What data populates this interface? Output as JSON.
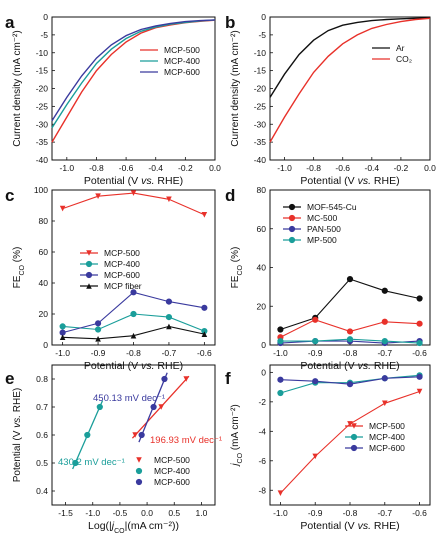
{
  "panels": [
    {
      "id": "a",
      "chart_data": {
        "type": "line",
        "xlabel": "Potential (V vs. RHE)",
        "ylabel": "Current density (mA cm⁻²)",
        "xlim": [
          -1.1,
          0.0
        ],
        "ylim": [
          -40,
          0
        ],
        "xticks": [
          -1.0,
          -0.8,
          -0.6,
          -0.4,
          -0.2,
          0.0
        ],
        "xtick_labels": [
          "-1.0",
          "-0.8",
          "-0.6",
          "-0.4",
          "-0.2",
          "0.0"
        ],
        "yticks": [
          0,
          -5,
          -10,
          -15,
          -20,
          -25,
          -30,
          -35,
          -40
        ],
        "ytick_labels": [
          "0",
          "-5",
          "-10",
          "-15",
          "-20",
          "-25",
          "-30",
          "-35",
          "-40"
        ],
        "legend_position": "right",
        "series": [
          {
            "name": "MCP-500",
            "color": "#e8312a",
            "x": [
              -1.1,
              -1.0,
              -0.9,
              -0.8,
              -0.7,
              -0.6,
              -0.5,
              -0.4,
              -0.3,
              -0.2,
              -0.1,
              0.0
            ],
            "y": [
              -35,
              -28,
              -21,
              -15,
              -10.5,
              -7,
              -4.5,
              -3,
              -2.2,
              -1.6,
              -1.2,
              -0.9
            ]
          },
          {
            "name": "MCP-400",
            "color": "#1a9e9a",
            "x": [
              -1.1,
              -1.0,
              -0.9,
              -0.8,
              -0.7,
              -0.6,
              -0.5,
              -0.4,
              -0.3,
              -0.2,
              -0.1,
              0.0
            ],
            "y": [
              -31,
              -24.5,
              -18.5,
              -13,
              -9,
              -6,
              -4,
              -2.8,
              -2,
              -1.5,
              -1.1,
              -0.8
            ]
          },
          {
            "name": "MCP-600",
            "color": "#3a3a9e",
            "x": [
              -1.1,
              -1.0,
              -0.9,
              -0.8,
              -0.7,
              -0.6,
              -0.5,
              -0.4,
              -0.3,
              -0.2,
              -0.1,
              0.0
            ],
            "y": [
              -29,
              -22.5,
              -16.5,
              -11.5,
              -7.8,
              -5.2,
              -3.5,
              -2.5,
              -1.8,
              -1.3,
              -1.0,
              -0.8
            ]
          }
        ]
      }
    },
    {
      "id": "b",
      "chart_data": {
        "type": "line",
        "xlabel": "Potential (V vs. RHE)",
        "ylabel": "Current density (mA cm⁻²)",
        "xlim": [
          -1.1,
          0.0
        ],
        "ylim": [
          -40,
          0
        ],
        "xticks": [
          -1.0,
          -0.8,
          -0.6,
          -0.4,
          -0.2,
          0.0
        ],
        "xtick_labels": [
          "-1.0",
          "-0.8",
          "-0.6",
          "-0.4",
          "-0.2",
          "0.0"
        ],
        "yticks": [
          0,
          -5,
          -10,
          -15,
          -20,
          -25,
          -30,
          -35,
          -40
        ],
        "ytick_labels": [
          "0",
          "-5",
          "-10",
          "-15",
          "-20",
          "-25",
          "-30",
          "-35",
          "-40"
        ],
        "legend_position": "right",
        "series": [
          {
            "name": "Ar",
            "color": "#111111",
            "x": [
              -1.1,
              -1.0,
              -0.9,
              -0.8,
              -0.7,
              -0.6,
              -0.5,
              -0.4,
              -0.3,
              -0.2,
              -0.1,
              0.0
            ],
            "y": [
              -22.5,
              -16,
              -10.5,
              -6.5,
              -3.8,
              -2.3,
              -1.5,
              -1.0,
              -0.7,
              -0.5,
              -0.35,
              -0.25
            ]
          },
          {
            "name": "CO₂",
            "color": "#e8312a",
            "x": [
              -1.1,
              -1.0,
              -0.9,
              -0.8,
              -0.7,
              -0.6,
              -0.5,
              -0.4,
              -0.3,
              -0.2,
              -0.1,
              0.0
            ],
            "y": [
              -35,
              -28,
              -21.5,
              -15.5,
              -11,
              -7.5,
              -5,
              -3.2,
              -2.1,
              -1.3,
              -0.7,
              -0.35
            ]
          }
        ]
      }
    },
    {
      "id": "c",
      "chart_data": {
        "type": "line",
        "xlabel": "Potential (V vs. RHE)",
        "ylabel": "FE_CO (%)",
        "xlim": [
          -1.03,
          -0.57
        ],
        "ylim": [
          0,
          100
        ],
        "xticks": [
          -1.0,
          -0.9,
          -0.8,
          -0.7,
          -0.6
        ],
        "xtick_labels": [
          "-1.0",
          "-0.9",
          "-0.8",
          "-0.7",
          "-0.6"
        ],
        "yticks": [
          0,
          20,
          40,
          60,
          80,
          100
        ],
        "ytick_labels": [
          "0",
          "20",
          "40",
          "60",
          "80",
          "100"
        ],
        "legend_position": "center",
        "series": [
          {
            "name": "MCP-500",
            "color": "#e8312a",
            "marker": "triangle-down",
            "x": [
              -1.0,
              -0.9,
              -0.8,
              -0.7,
              -0.6
            ],
            "y": [
              88,
              96,
              98,
              94,
              84
            ]
          },
          {
            "name": "MCP-400",
            "color": "#1a9e9a",
            "marker": "circle",
            "x": [
              -1.0,
              -0.9,
              -0.8,
              -0.7,
              -0.6
            ],
            "y": [
              12,
              10,
              20,
              18,
              9
            ]
          },
          {
            "name": "MCP-600",
            "color": "#3a3a9e",
            "marker": "circle",
            "x": [
              -1.0,
              -0.9,
              -0.8,
              -0.7,
              -0.6
            ],
            "y": [
              8,
              14,
              34,
              28,
              24
            ]
          },
          {
            "name": "MCP fiber",
            "color": "#111111",
            "marker": "triangle-up",
            "x": [
              -1.0,
              -0.9,
              -0.8,
              -0.7,
              -0.6
            ],
            "y": [
              5,
              4,
              6,
              12,
              7
            ]
          }
        ]
      }
    },
    {
      "id": "d",
      "chart_data": {
        "type": "line",
        "xlabel": "Potential (V vs. RHE)",
        "ylabel": "FE_CO (%)",
        "xlim": [
          -1.03,
          -0.57
        ],
        "ylim": [
          0,
          80
        ],
        "xticks": [
          -1.0,
          -0.9,
          -0.8,
          -0.7,
          -0.6
        ],
        "xtick_labels": [
          "-1.0",
          "-0.9",
          "-0.8",
          "-0.7",
          "-0.6"
        ],
        "yticks": [
          0,
          20,
          40,
          60,
          80
        ],
        "ytick_labels": [
          "0",
          "20",
          "40",
          "60",
          "80"
        ],
        "legend_position": "top-left",
        "series": [
          {
            "name": "MOF-545-Cu",
            "color": "#111111",
            "marker": "circle",
            "x": [
              -1.0,
              -0.9,
              -0.8,
              -0.7,
              -0.6
            ],
            "y": [
              8,
              14,
              34,
              28,
              24
            ]
          },
          {
            "name": "MC-500",
            "color": "#e8312a",
            "marker": "circle",
            "x": [
              -1.0,
              -0.9,
              -0.8,
              -0.7,
              -0.6
            ],
            "y": [
              4,
              13,
              7,
              12,
              11
            ]
          },
          {
            "name": "PAN-500",
            "color": "#3a3a9e",
            "marker": "circle",
            "x": [
              -1.0,
              -0.9,
              -0.8,
              -0.7,
              -0.6
            ],
            "y": [
              1,
              2,
              2,
              1,
              2
            ]
          },
          {
            "name": "MP-500",
            "color": "#1a9e9a",
            "marker": "circle",
            "x": [
              -1.0,
              -0.9,
              -0.8,
              -0.7,
              -0.6
            ],
            "y": [
              2,
              2,
              3,
              2,
              1
            ]
          }
        ]
      }
    },
    {
      "id": "e",
      "chart_data": {
        "type": "scatter",
        "xlabel": "Log(|j_CO|(mA cm⁻²))",
        "ylabel": "Potential (V vs. RHE)",
        "xlim": [
          -1.75,
          1.25
        ],
        "ylim": [
          0.35,
          0.85
        ],
        "xticks": [
          -1.5,
          -1.0,
          -0.5,
          0.0,
          0.5,
          1.0
        ],
        "xtick_labels": [
          "-1.5",
          "-1.0",
          "-0.5",
          "0.0",
          "0.5",
          "1.0"
        ],
        "yticks": [
          0.4,
          0.5,
          0.6,
          0.7,
          0.8
        ],
        "ytick_labels": [
          "0.4",
          "0.5",
          "0.6",
          "0.7",
          "0.8"
        ],
        "legend_position": "bottom-right",
        "series": [
          {
            "name": "MCP-500",
            "color": "#e8312a",
            "marker": "triangle-down",
            "x": [
              -0.22,
              0.26,
              0.72
            ],
            "y": [
              0.6,
              0.7,
              0.8
            ],
            "annotation": "196.93 mV dec⁻¹"
          },
          {
            "name": "MCP-400",
            "color": "#1a9e9a",
            "marker": "circle",
            "x": [
              -1.32,
              -1.1,
              -0.87
            ],
            "y": [
              0.5,
              0.6,
              0.7
            ],
            "annotation": "430.2 mV dec⁻¹"
          },
          {
            "name": "MCP-600",
            "color": "#3a3a9e",
            "marker": "circle",
            "x": [
              -0.1,
              0.12,
              0.32
            ],
            "y": [
              0.6,
              0.7,
              0.8
            ],
            "annotation": "450.13 mV dec⁻¹"
          }
        ]
      }
    },
    {
      "id": "f",
      "chart_data": {
        "type": "line",
        "xlabel": "Potential (V vs. RHE)",
        "ylabel": "j_CO (mA cm⁻²)",
        "xlim": [
          -1.03,
          -0.57
        ],
        "ylim": [
          -9,
          0.5
        ],
        "xticks": [
          -1.0,
          -0.9,
          -0.8,
          -0.7,
          -0.6
        ],
        "xtick_labels": [
          "-1.0",
          "-0.9",
          "-0.8",
          "-0.7",
          "-0.6"
        ],
        "yticks": [
          0,
          -2,
          -4,
          -6,
          -8
        ],
        "ytick_labels": [
          "0",
          "-2",
          "-4",
          "-6",
          "-8"
        ],
        "legend_position": "right",
        "series": [
          {
            "name": "MCP-500",
            "color": "#e8312a",
            "marker": "triangle-down",
            "x": [
              -1.0,
              -0.9,
              -0.8,
              -0.7,
              -0.6
            ],
            "y": [
              -8.2,
              -5.7,
              -3.5,
              -2.1,
              -1.3
            ]
          },
          {
            "name": "MCP-400",
            "color": "#1a9e9a",
            "marker": "circle",
            "x": [
              -1.0,
              -0.9,
              -0.8,
              -0.7,
              -0.6
            ],
            "y": [
              -1.4,
              -0.7,
              -0.7,
              -0.4,
              -0.2
            ]
          },
          {
            "name": "MCP-600",
            "color": "#3a3a9e",
            "marker": "circle",
            "x": [
              -1.0,
              -0.9,
              -0.8,
              -0.7,
              -0.6
            ],
            "y": [
              -0.5,
              -0.6,
              -0.8,
              -0.4,
              -0.3
            ]
          }
        ]
      }
    }
  ]
}
